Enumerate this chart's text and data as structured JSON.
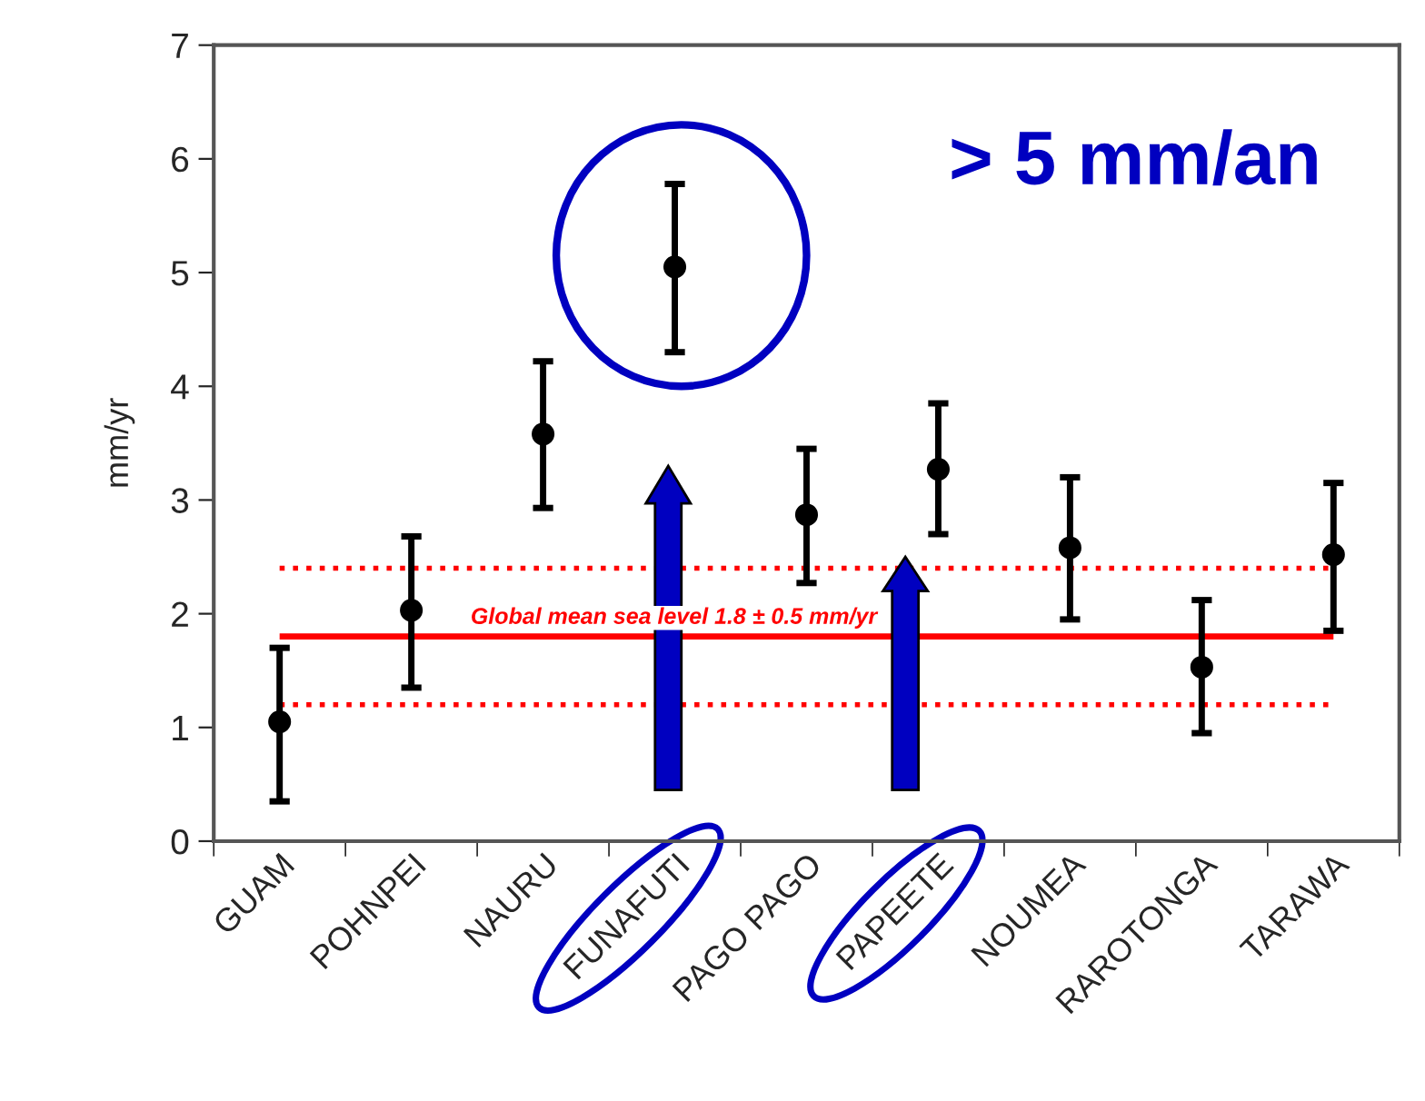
{
  "chart_data": {
    "type": "scatter",
    "ylabel": "mm/yr",
    "categories": [
      "GUAM",
      "POHNPEI",
      "NAURU",
      "FUNAFUTI",
      "PAGO PAGO",
      "PAPEETE",
      "NOUMEA",
      "RAROTONGA",
      "TARAWA"
    ],
    "series": [
      {
        "color": "#000000",
        "values": [
          1.05,
          2.03,
          3.58,
          5.05,
          2.87,
          3.27,
          2.58,
          1.53,
          2.52
        ],
        "errors": [
          [
            0.35,
            1.7
          ],
          [
            1.35,
            2.68
          ],
          [
            2.93,
            4.22
          ],
          [
            4.3,
            5.78
          ],
          [
            2.27,
            3.45
          ],
          [
            2.7,
            3.85
          ],
          [
            1.95,
            3.2
          ],
          [
            0.95,
            2.12
          ],
          [
            1.85,
            3.15
          ]
        ]
      }
    ],
    "marker": "circle",
    "ylim": [
      0,
      7
    ],
    "yticks": [
      0,
      1,
      2,
      3,
      4,
      5,
      6,
      7
    ],
    "grid": false,
    "ref_lines": [
      {
        "axis": "y",
        "value": 1.8,
        "label": "Global mean sea level 1.8 ± 0.5 mm/yr",
        "color": "#ff0000",
        "line_style": "solid"
      },
      {
        "axis": "y",
        "value": 2.4,
        "color": "#ff0000",
        "line_style": "dotted"
      },
      {
        "axis": "y",
        "value": 1.2,
        "color": "#ff0000",
        "line_style": "dotted"
      }
    ],
    "annotations": [
      "> 5 mm/an"
    ]
  }
}
